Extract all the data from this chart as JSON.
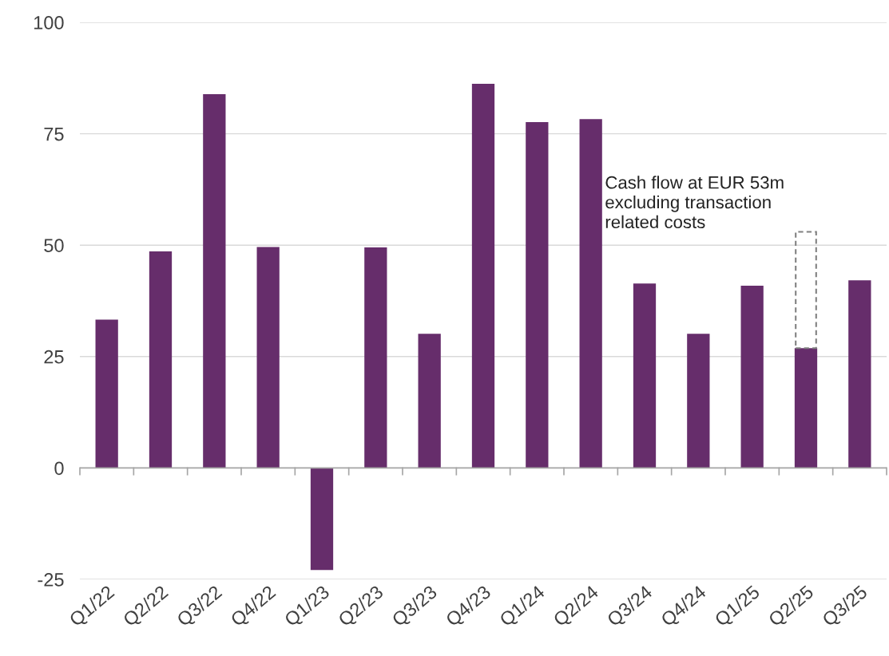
{
  "chart_data": {
    "type": "bar",
    "categories": [
      "Q1/22",
      "Q2/22",
      "Q3/22",
      "Q4/22",
      "Q1/23",
      "Q2/23",
      "Q3/23",
      "Q4/23",
      "Q1/24",
      "Q2/24",
      "Q3/24",
      "Q4/24",
      "Q1/25",
      "Q2/25",
      "Q3/25"
    ],
    "stacked": true,
    "series": [
      {
        "color": "#662d6b",
        "values": [
          33.3,
          48.6,
          83.9,
          49.6,
          -22.9,
          49.5,
          30.1,
          86.2,
          77.6,
          78.3,
          41.4,
          30.1,
          40.9,
          26.9,
          42.1
        ]
      },
      {
        "color": "#808080",
        "line_style": "dashed",
        "values": [
          null,
          null,
          null,
          null,
          null,
          null,
          null,
          null,
          null,
          null,
          null,
          null,
          null,
          26.1,
          null
        ]
      }
    ],
    "ylim": [
      -25,
      100
    ],
    "yticks": [
      {
        "value": -25,
        "label": "-25"
      },
      0,
      25,
      50,
      75,
      100
    ],
    "grid": "y",
    "annotations": [
      "Cash flow at EUR 53m\nexcluding transaction\nrelated costs"
    ]
  }
}
